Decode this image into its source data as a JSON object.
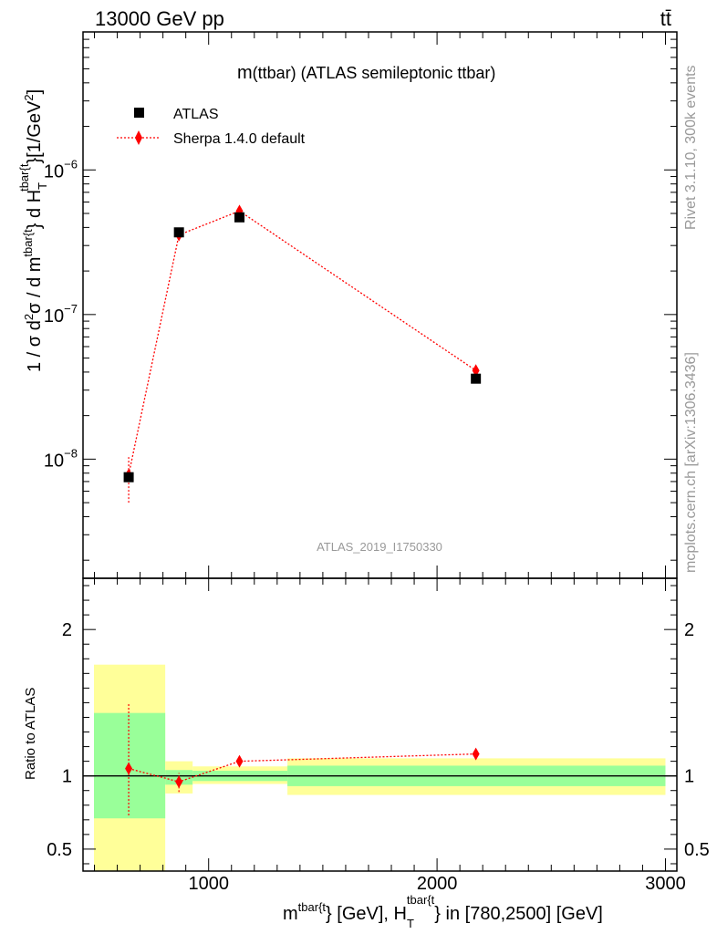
{
  "header": {
    "energy_label": "13000 GeV pp",
    "process_label": "tt̄"
  },
  "side_labels": {
    "rivet": "Rivet 3.1.10,  300k events",
    "mcplots": "mcplots.cern.ch [arXiv:1306.3436]"
  },
  "chart_data": {
    "type": "scatter",
    "title_prefix": "m",
    "title_rest": "(ttbar) (ATLAS semileptonic ttbar)",
    "analysis_id": "ATLAS_2019_I1750330",
    "ylabel_main_head": "1 / σ d",
    "ylabel_main_sup2": "2",
    "ylabel_main_mid": "σ / d m",
    "ylabel_main_sup_tbar": "tbar{t",
    "ylabel_main_brace": "} d H",
    "ylabel_main_sub_T": "T",
    "ylabel_main_tail": "}[1/GeV",
    "ylabel_main_end": "]",
    "ylabel_ratio": "Ratio to ATLAS",
    "xlabel_m": "m",
    "xlabel_sup1": "tbar{t",
    "xlabel_mid": "} [GeV], H",
    "xlabel_sup2": "tbar{t",
    "xlabel_sub": "T",
    "xlabel_tail": "} in [780,2500] [GeV]",
    "xlim": [
      450,
      3050
    ],
    "ylim_main": [
      1.5e-09,
      9e-06
    ],
    "ylim_ratio": [
      0.35,
      2.35
    ],
    "x_ticks": [
      {
        "value": 1000,
        "label": "1000"
      },
      {
        "value": 2000,
        "label": "2000"
      },
      {
        "value": 3000,
        "label": "3000"
      }
    ],
    "y_ticks_main": [
      {
        "value": 1e-08,
        "base": "10",
        "exp": "−8"
      },
      {
        "value": 1e-07,
        "base": "10",
        "exp": "−7"
      },
      {
        "value": 1e-06,
        "base": "10",
        "exp": "−6"
      }
    ],
    "y_ticks_ratio": [
      {
        "value": 0.5,
        "label": "0.5"
      },
      {
        "value": 1,
        "label": "1"
      },
      {
        "value": 2,
        "label": "2"
      }
    ],
    "legend": [
      {
        "name": "ATLAS",
        "marker": "square",
        "color": "#000000"
      },
      {
        "name": "Sherpa 1.4.0 default",
        "marker": "diamond",
        "color": "#ff0000"
      }
    ],
    "bins": [
      {
        "xlo": 450,
        "xhi": 810,
        "y_green": [
          0.71,
          1.43
        ],
        "y_yellow": [
          0.3,
          1.76
        ]
      },
      {
        "xlo": 810,
        "xhi": 930,
        "y_green": [
          0.94,
          1.04
        ],
        "y_yellow": [
          0.88,
          1.1
        ]
      },
      {
        "xlo": 930,
        "xhi": 1345,
        "y_green": [
          0.965,
          1.035
        ],
        "y_yellow": [
          0.945,
          1.065
        ]
      },
      {
        "xlo": 1345,
        "xhi": 3000,
        "y_green": [
          0.93,
          1.07
        ],
        "y_yellow": [
          0.87,
          1.12
        ]
      }
    ],
    "series": [
      {
        "name": "ATLAS",
        "x": [
          650,
          870,
          1135,
          2170
        ],
        "y": [
          7.5e-09,
          3.7e-07,
          4.7e-07,
          3.6e-08
        ]
      },
      {
        "name": "Sherpa 1.4.0 default",
        "x": [
          650,
          870,
          1135,
          2170
        ],
        "y": [
          7.8e-09,
          3.55e-07,
          5.2e-07,
          4.1e-08
        ],
        "y_err_lo": [
          5e-09,
          3.3e-07,
          5e-07,
          4e-08
        ],
        "y_err_hi": [
          1.05e-08,
          3.8e-07,
          5.4e-07,
          4.2e-08
        ],
        "ratio": [
          1.05,
          0.96,
          1.1,
          1.15
        ],
        "ratio_err_lo": [
          0.73,
          0.89,
          1.08,
          1.12
        ],
        "ratio_err_hi": [
          1.5,
          1.02,
          1.13,
          1.19
        ]
      }
    ]
  }
}
